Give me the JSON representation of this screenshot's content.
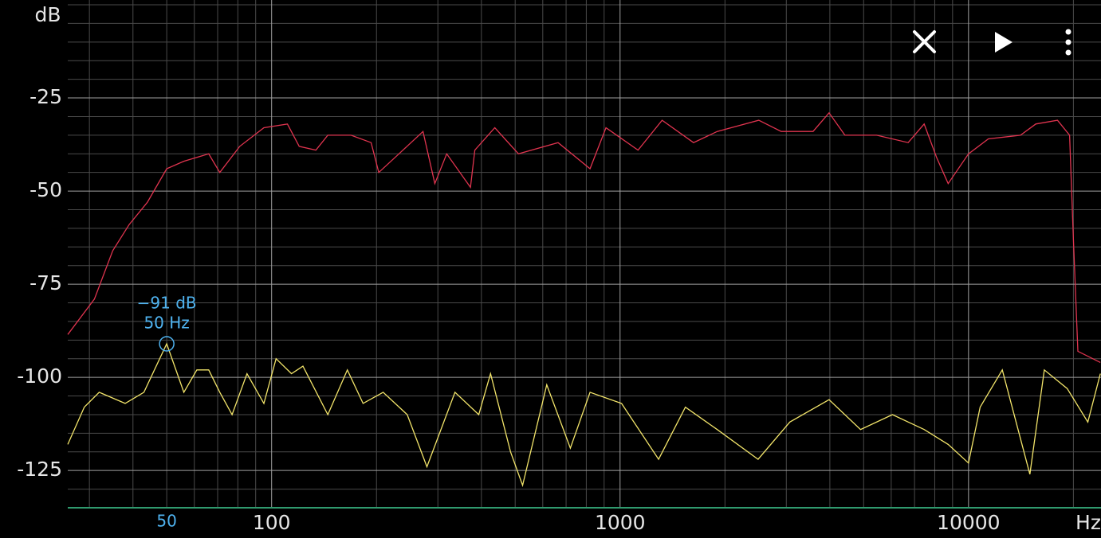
{
  "chart_data": {
    "type": "line",
    "y_label": "dB",
    "x_label": "Hz",
    "xscale": "log",
    "xlim": [
      26,
      24000
    ],
    "ylim": [
      -135,
      0
    ],
    "xticks": [
      100,
      1000,
      10000
    ],
    "yticks": [
      -125,
      -100,
      -75,
      -50,
      -25
    ],
    "xminorticks": [
      30,
      40,
      50,
      60,
      70,
      80,
      90,
      200,
      300,
      400,
      500,
      600,
      700,
      800,
      900,
      2000,
      3000,
      4000,
      5000,
      6000,
      7000,
      8000,
      9000,
      20000
    ],
    "yminorticks": [
      -130,
      -120,
      -115,
      -110,
      -105,
      -95,
      -90,
      -85,
      -80,
      -70,
      -65,
      -60,
      -55,
      -45,
      -40,
      -35,
      -30,
      -20,
      -15,
      -10,
      -5,
      0
    ],
    "grid": true,
    "series": [
      {
        "color": "#e0344f",
        "x": [
          26,
          31,
          35,
          39,
          44,
          50,
          56,
          66,
          71,
          81,
          95,
          111,
          120,
          134,
          145,
          169,
          193,
          203,
          232,
          272,
          294,
          318,
          372,
          383,
          437,
          511,
          664,
          820,
          911,
          1126,
          1320,
          1625,
          1900,
          2500,
          2900,
          3580,
          3980,
          4420,
          5450,
          6710,
          7460,
          8100,
          8740,
          10000,
          11400,
          14100,
          15600,
          18000,
          19500,
          20000,
          20600,
          23900
        ],
        "values": [
          -88.5,
          -79,
          -66,
          -59,
          -53,
          -44,
          -42,
          -40,
          -45,
          -38,
          -33,
          -32,
          -38,
          -39,
          -35,
          -35,
          -37,
          -45,
          -40,
          -34,
          -48,
          -40,
          -49,
          -39,
          -33,
          -40,
          -37,
          -44,
          -33,
          -39,
          -31,
          -37,
          -34,
          -31,
          -34,
          -34,
          -29,
          -35,
          -35,
          -37,
          -32,
          -41,
          -48,
          -40,
          -36,
          -35,
          -32,
          -31,
          -35,
          -63,
          -93,
          -96
        ]
      },
      {
        "color": "#f2e46a",
        "x": [
          26,
          29,
          32,
          38,
          43,
          50,
          56,
          61,
          66,
          71,
          77,
          85,
          95,
          103,
          114,
          123,
          145,
          165,
          183,
          209,
          245,
          279,
          336,
          393,
          425,
          485,
          525,
          616,
          720,
          820,
          1010,
          1290,
          1540,
          1900,
          2490,
          3070,
          3980,
          4900,
          6050,
          7460,
          8740,
          10000,
          10800,
          12500,
          15000,
          16500,
          19200,
          22000,
          23900
        ],
        "values": [
          -118,
          -108,
          -104,
          -107,
          -104,
          -91,
          -104,
          -98,
          -98,
          -104,
          -110,
          -99,
          -107,
          -95,
          -99,
          -97,
          -110,
          -98,
          -107,
          -104,
          -110,
          -124,
          -104,
          -110,
          -99,
          -120,
          -129,
          -102,
          -119,
          -104,
          -107,
          -122,
          -108,
          -114,
          -122,
          -112,
          -106,
          -114,
          -110,
          -114,
          -118,
          -123,
          -108,
          -98,
          -126,
          -98,
          -103,
          -112,
          -99
        ]
      }
    ],
    "marker": {
      "x": 50,
      "y": -91,
      "value_label": "−91 dB",
      "freq_label": "50 Hz",
      "axis_label": "50",
      "color": "#4fb3f0"
    }
  }
}
